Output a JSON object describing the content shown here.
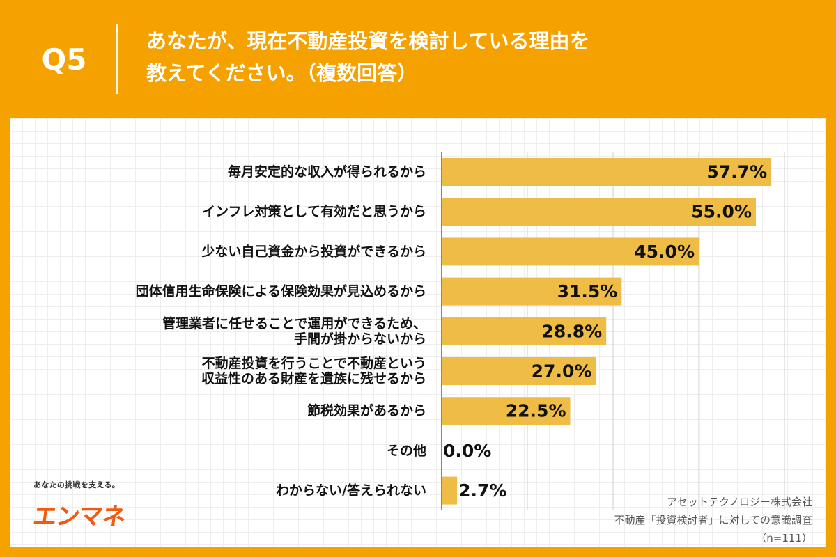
{
  "header": {
    "q_label": "Q5",
    "title_line1": "あなたが、現在不動産投資を検討している理由を",
    "title_line2": "教えてください。（複数回答）"
  },
  "brand": {
    "tagline": "あなたの挑戦を支える。",
    "logo_text": "エンマネ"
  },
  "source": {
    "company": "アセットテクノロジー株式会社",
    "survey": "不動産「投資検討者」に対しての意識調査",
    "n": "（n=111）"
  },
  "colors": {
    "background": "#f5a100",
    "bar": "#efbd45",
    "text": "#111111"
  },
  "chart_data": {
    "type": "bar",
    "orientation": "horizontal",
    "xlim": [
      0,
      80
    ],
    "grid": true,
    "categories": [
      [
        "毎月安定的な収入が得られるから"
      ],
      [
        "インフレ対策として有効だと思うから"
      ],
      [
        "少ない自己資金から投資ができるから"
      ],
      [
        "団体信用生命保険による保険効果が見込めるから"
      ],
      [
        "管理業者に任せることで運用ができるため、",
        "手間が掛からないから"
      ],
      [
        "不動産投資を行うことで不動産という",
        "収益性のある財産を遺族に残せるから"
      ],
      [
        "節税効果があるから"
      ],
      [
        "その他"
      ],
      [
        "わからない/答えられない"
      ]
    ],
    "values": [
      57.7,
      55.0,
      45.0,
      31.5,
      28.8,
      27.0,
      22.5,
      0.0,
      2.7
    ],
    "value_labels": [
      "57.7%",
      "55.0%",
      "45.0%",
      "31.5%",
      "28.8%",
      "27.0%",
      "22.5%",
      "0.0%",
      "2.7%"
    ]
  }
}
